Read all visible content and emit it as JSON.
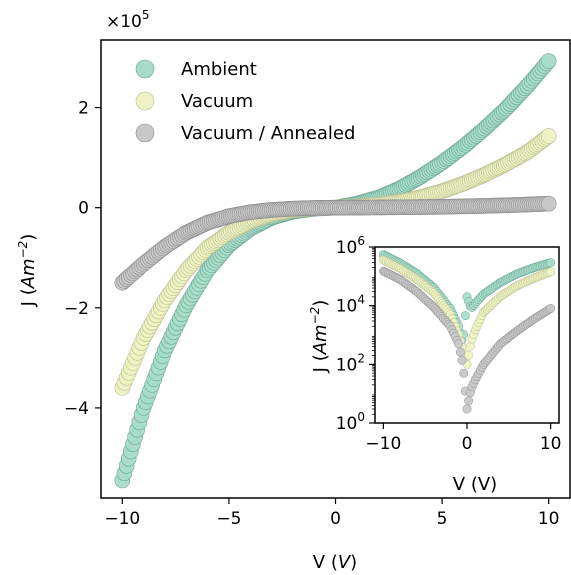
{
  "chart_data": [
    {
      "type": "scatter",
      "xlabel": "V (",
      "xlabel_var": "V",
      "xlabel_end": ")",
      "ylabel": "J (",
      "ylabel_var": "Am",
      "ylabel_exp": "−2",
      "ylabel_end": ")",
      "scale_prefix": "×10",
      "scale_exp": "5",
      "xlim": [
        -11,
        11
      ],
      "ylim": [
        -5.8,
        3.35
      ],
      "xticks": [
        -10,
        -5,
        0,
        5,
        10
      ],
      "xtick_labels": [
        "−10",
        "−5",
        "0",
        "5",
        "10"
      ],
      "yticks": [
        -4,
        -2,
        0,
        2
      ],
      "ytick_labels": [
        "−4",
        "−2",
        "0",
        "2"
      ],
      "legend_placement": "top-left",
      "grid": false,
      "y_units_multiplier": 100000,
      "series": [
        {
          "name": "Ambient",
          "color": "#a8dcc8",
          "edge": "#6aa596",
          "x": [
            -10,
            -9,
            -8,
            -7,
            -6,
            -5,
            -4,
            -3,
            -2,
            -1,
            0,
            1,
            2,
            3,
            4,
            5,
            6,
            7,
            8,
            9,
            10
          ],
          "y": [
            -5.45,
            -4.0,
            -2.85,
            -1.95,
            -1.25,
            -0.75,
            -0.42,
            -0.2,
            -0.08,
            -0.02,
            0.0,
            0.08,
            0.2,
            0.38,
            0.62,
            0.9,
            1.22,
            1.58,
            1.98,
            2.43,
            2.93
          ]
        },
        {
          "name": "Vacuum",
          "color": "#eef2c4",
          "edge": "#b8bd8e",
          "x": [
            -10,
            -9,
            -8,
            -7,
            -6,
            -5,
            -4,
            -3,
            -2,
            -1,
            0,
            1,
            2,
            3,
            4,
            5,
            6,
            7,
            8,
            9,
            10
          ],
          "y": [
            -3.6,
            -2.6,
            -1.85,
            -1.25,
            -0.8,
            -0.5,
            -0.28,
            -0.13,
            -0.05,
            -0.01,
            0.0,
            0.02,
            0.06,
            0.12,
            0.21,
            0.33,
            0.48,
            0.66,
            0.87,
            1.11,
            1.43
          ]
        },
        {
          "name": "Vacuum / Annealed",
          "color": "#c8c8c8",
          "edge": "#8e8e8e",
          "x": [
            -10,
            -9,
            -8,
            -7,
            -6,
            -5,
            -4,
            -3,
            -2,
            -1,
            0,
            1,
            2,
            3,
            4,
            5,
            6,
            7,
            8,
            9,
            10
          ],
          "y": [
            -1.5,
            -1.12,
            -0.78,
            -0.5,
            -0.3,
            -0.17,
            -0.09,
            -0.045,
            -0.02,
            -0.005,
            0.0,
            0.002,
            0.004,
            0.008,
            0.012,
            0.018,
            0.026,
            0.036,
            0.048,
            0.063,
            0.08
          ]
        }
      ]
    },
    {
      "type": "scatter",
      "scale": "log",
      "xlabel": "V (V)",
      "ylabel": "J (",
      "ylabel_var": "Am",
      "ylabel_exp": "−2",
      "ylabel_end": ")",
      "xlim": [
        -11,
        11
      ],
      "ylim": [
        1,
        1000000
      ],
      "xticks": [
        -10,
        0,
        10
      ],
      "xtick_labels": [
        "−10",
        "0",
        "10"
      ],
      "yticks": [
        1,
        100,
        10000,
        1000000
      ],
      "ytick_bases": [
        "10",
        "10",
        "10",
        "10"
      ],
      "ytick_exps": [
        "0",
        "2",
        "4",
        "6"
      ],
      "series": [
        {
          "name": "Ambient",
          "color": "#a8dcc8",
          "edge": "#6aa596",
          "x": [
            -10,
            -8,
            -6,
            -4,
            -2,
            -1,
            -0.5,
            0,
            0.5,
            1,
            2,
            4,
            6,
            8,
            10
          ],
          "y": [
            545000,
            285000,
            125000,
            42000,
            8000,
            2000,
            500,
            20000,
            8000,
            12000,
            25000,
            62000,
            122000,
            198000,
            293000
          ]
        },
        {
          "name": "Vacuum",
          "color": "#eef2c4",
          "edge": "#b8bd8e",
          "x": [
            -10,
            -8,
            -6,
            -4,
            -2,
            -1,
            -0.5,
            0,
            0.5,
            1,
            2,
            4,
            6,
            8,
            10
          ],
          "y": [
            360000,
            185000,
            80000,
            28000,
            5000,
            1000,
            300,
            100,
            600,
            1500,
            6000,
            21000,
            48000,
            87000,
            143000
          ]
        },
        {
          "name": "Vacuum / Annealed",
          "color": "#c8c8c8",
          "edge": "#8e8e8e",
          "x": [
            -10,
            -8,
            -6,
            -4,
            -2,
            -1,
            -0.5,
            0,
            0.5,
            1,
            2,
            4,
            6,
            8,
            10
          ],
          "y": [
            150000,
            78000,
            30000,
            9000,
            2000,
            500,
            100,
            3,
            15,
            30,
            100,
            500,
            1400,
            3500,
            8000
          ]
        }
      ]
    }
  ]
}
